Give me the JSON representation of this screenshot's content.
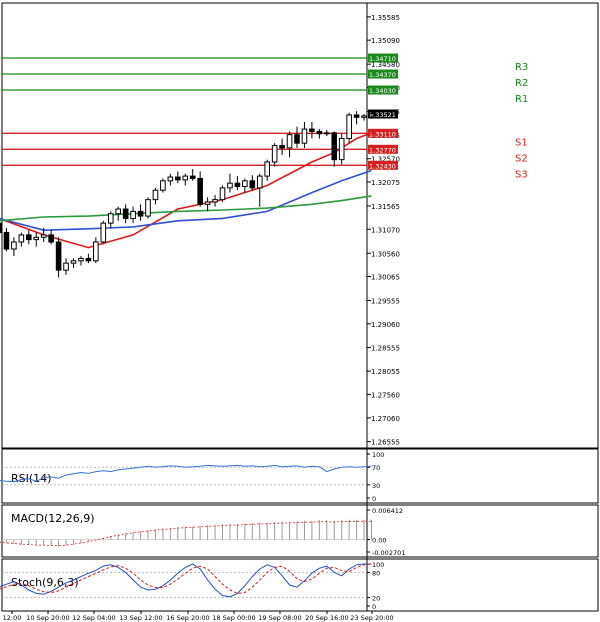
{
  "chart_data": {
    "type": "candlestick",
    "instrument_axis": {
      "ticks": [
        "1.35585",
        "1.35090",
        "1.34580",
        "1.34080",
        "1.33575",
        "1.33075",
        "1.32570",
        "1.32075",
        "1.31565",
        "1.31070",
        "1.30560",
        "1.30065",
        "1.29555",
        "1.29060",
        "1.28555",
        "1.28055",
        "1.27560",
        "1.27060",
        "1.26555"
      ],
      "ylim": [
        1.2642,
        1.3588
      ]
    },
    "x_tick_labels": [
      "12:00",
      "10 Sep 20:00",
      "12 Sep 04:00",
      "13 Sep 12:00",
      "16 Sep 20:00",
      "18 Sep 00:00",
      "19 Sep 08:00",
      "20 Sep 16:00",
      "23 Sep 20:00"
    ],
    "levels": [
      {
        "name": "R3",
        "value": 1.3471,
        "tag": "1.34710",
        "color": "#1a8a1a"
      },
      {
        "name": "R2",
        "value": 1.3437,
        "tag": "1.34370",
        "color": "#1a8a1a"
      },
      {
        "name": "R1",
        "value": 1.3403,
        "tag": "1.34030",
        "color": "#1a8a1a"
      },
      {
        "name": "S1",
        "value": 1.3311,
        "tag": "1.33110",
        "color": "#d42020"
      },
      {
        "name": "S2",
        "value": 1.3277,
        "tag": "1.32770",
        "color": "#d42020"
      },
      {
        "name": "S3",
        "value": 1.3243,
        "tag": "1.32430",
        "color": "#d42020"
      }
    ],
    "current_price": "1.33521",
    "candles": [
      [
        1.312,
        1.3135,
        1.309,
        1.31
      ],
      [
        1.31,
        1.311,
        1.306,
        1.3065
      ],
      [
        1.3065,
        1.309,
        1.305,
        1.308
      ],
      [
        1.308,
        1.31,
        1.307,
        1.3095
      ],
      [
        1.3095,
        1.3105,
        1.3075,
        1.3085
      ],
      [
        1.3085,
        1.31,
        1.307,
        1.309
      ],
      [
        1.309,
        1.311,
        1.308,
        1.3095
      ],
      [
        1.3095,
        1.3105,
        1.3075,
        1.308
      ],
      [
        1.308,
        1.309,
        1.3005,
        1.302
      ],
      [
        1.302,
        1.3045,
        1.301,
        1.3035
      ],
      [
        1.3035,
        1.3045,
        1.3025,
        1.304
      ],
      [
        1.304,
        1.305,
        1.303,
        1.3045
      ],
      [
        1.3045,
        1.3055,
        1.3035,
        1.304
      ],
      [
        1.304,
        1.309,
        1.3035,
        1.308
      ],
      [
        1.308,
        1.3125,
        1.3075,
        1.312
      ],
      [
        1.312,
        1.3145,
        1.311,
        1.314
      ],
      [
        1.314,
        1.3155,
        1.3125,
        1.315
      ],
      [
        1.315,
        1.316,
        1.312,
        1.313
      ],
      [
        1.313,
        1.3155,
        1.312,
        1.3145
      ],
      [
        1.3145,
        1.316,
        1.3125,
        1.3135
      ],
      [
        1.3135,
        1.3175,
        1.313,
        1.317
      ],
      [
        1.317,
        1.3195,
        1.316,
        1.319
      ],
      [
        1.319,
        1.3215,
        1.3185,
        1.321
      ],
      [
        1.321,
        1.3225,
        1.32,
        1.3218
      ],
      [
        1.3218,
        1.323,
        1.3205,
        1.3212
      ],
      [
        1.3212,
        1.3225,
        1.32,
        1.322
      ],
      [
        1.322,
        1.3235,
        1.321,
        1.3215
      ],
      [
        1.3215,
        1.323,
        1.3155,
        1.316
      ],
      [
        1.316,
        1.3175,
        1.3145,
        1.3165
      ],
      [
        1.3165,
        1.318,
        1.3155,
        1.317
      ],
      [
        1.317,
        1.32,
        1.3165,
        1.3195
      ],
      [
        1.3195,
        1.3225,
        1.3185,
        1.3205
      ],
      [
        1.3205,
        1.322,
        1.319,
        1.3198
      ],
      [
        1.3198,
        1.3215,
        1.3185,
        1.321
      ],
      [
        1.321,
        1.3222,
        1.319,
        1.3195
      ],
      [
        1.3195,
        1.3225,
        1.3155,
        1.322
      ],
      [
        1.322,
        1.3255,
        1.321,
        1.325
      ],
      [
        1.325,
        1.329,
        1.324,
        1.3285
      ],
      [
        1.3285,
        1.33,
        1.3265,
        1.328
      ],
      [
        1.328,
        1.3315,
        1.326,
        1.3308
      ],
      [
        1.3308,
        1.3325,
        1.328,
        1.329
      ],
      [
        1.329,
        1.3335,
        1.328,
        1.332
      ],
      [
        1.332,
        1.3335,
        1.33,
        1.3315
      ],
      [
        1.3315,
        1.332,
        1.33,
        1.331
      ],
      [
        1.331,
        1.3318,
        1.3305,
        1.3312
      ],
      [
        1.3312,
        1.3315,
        1.324,
        1.3255
      ],
      [
        1.3255,
        1.331,
        1.3245,
        1.33
      ],
      [
        1.33,
        1.3355,
        1.329,
        1.335
      ],
      [
        1.335,
        1.3358,
        1.333,
        1.3345
      ],
      [
        1.3345,
        1.3352,
        1.3338,
        1.3348
      ],
      [
        1.3348,
        1.3356,
        1.3342,
        1.3352
      ]
    ],
    "moving_averages": [
      {
        "color": "#e01818",
        "points": [
          [
            0,
            1.313
          ],
          [
            6,
            1.3095
          ],
          [
            12,
            1.3068
          ],
          [
            18,
            1.3095
          ],
          [
            24,
            1.315
          ],
          [
            30,
            1.317
          ],
          [
            36,
            1.32
          ],
          [
            42,
            1.325
          ],
          [
            45,
            1.327
          ],
          [
            48,
            1.33
          ],
          [
            50,
            1.3312
          ]
        ]
      },
      {
        "color": "#3050d0",
        "points": [
          [
            0,
            1.313
          ],
          [
            6,
            1.3105
          ],
          [
            12,
            1.3108
          ],
          [
            18,
            1.3112
          ],
          [
            24,
            1.3125
          ],
          [
            30,
            1.313
          ],
          [
            36,
            1.3145
          ],
          [
            42,
            1.3185
          ],
          [
            46,
            1.321
          ],
          [
            50,
            1.3232
          ]
        ]
      },
      {
        "color": "#2a9a3a",
        "points": [
          [
            0,
            1.3125
          ],
          [
            6,
            1.3133
          ],
          [
            12,
            1.3135
          ],
          [
            18,
            1.314
          ],
          [
            24,
            1.3145
          ],
          [
            30,
            1.3148
          ],
          [
            36,
            1.3152
          ],
          [
            42,
            1.316
          ],
          [
            46,
            1.3168
          ],
          [
            50,
            1.3178
          ]
        ]
      }
    ],
    "indicators": [
      {
        "label": "RSI(14)",
        "ticks": [
          "100",
          "70",
          "30",
          "0"
        ],
        "range": [
          0,
          100
        ],
        "color": "#3a70d8",
        "values": [
          40,
          38,
          37,
          42,
          44,
          38,
          46,
          48,
          45,
          52,
          55,
          58,
          56,
          60,
          62,
          60,
          64,
          66,
          68,
          70,
          72,
          70,
          71,
          73,
          72,
          70,
          71,
          72,
          74,
          73,
          72,
          73,
          74,
          72,
          73,
          71,
          72,
          74,
          71,
          72,
          73,
          70,
          72,
          71,
          60,
          66,
          70,
          71,
          70,
          71,
          72
        ]
      },
      {
        "label": "MACD(12,26,9)",
        "ticks": [
          "0.006412",
          "0.00",
          "-0.002701"
        ],
        "range": [
          -0.002701,
          0.006412
        ],
        "color": "#d42020",
        "values": [
          -0.0006,
          -0.0008,
          -0.0009,
          -0.0011,
          -0.0012,
          -0.0013,
          -0.0013,
          -0.0014,
          -0.0015,
          -0.0013,
          -0.0011,
          -0.0008,
          -0.0005,
          -0.0001,
          0.0003,
          0.0007,
          0.001,
          0.0013,
          0.0016,
          0.0018,
          0.002,
          0.0022,
          0.0024,
          0.0025,
          0.0027,
          0.0028,
          0.0029,
          0.003,
          0.0031,
          0.0032,
          0.0033,
          0.0034,
          0.0034,
          0.0035,
          0.0036,
          0.0037,
          0.0037,
          0.0038,
          0.0039,
          0.0039,
          0.004,
          0.0041,
          0.0041,
          0.0042,
          0.0042,
          0.0041,
          0.0042,
          0.0043,
          0.0043,
          0.0043,
          0.0043
        ]
      },
      {
        "label": "Stoch(9,6,3)",
        "ticks": [
          "100",
          "80",
          "20",
          "0"
        ],
        "range": [
          0,
          100
        ],
        "main_color": "#2050c0",
        "signal_color": "#d42020",
        "main": [
          45,
          52,
          58,
          50,
          38,
          30,
          28,
          35,
          45,
          55,
          62,
          70,
          78,
          85,
          95,
          98,
          92,
          80,
          62,
          45,
          38,
          40,
          48,
          62,
          78,
          92,
          100,
          88,
          62,
          40,
          25,
          22,
          30,
          48,
          70,
          88,
          98,
          92,
          72,
          50,
          45,
          60,
          78,
          90,
          95,
          80,
          72,
          88,
          98,
          100,
          100
        ],
        "signal": [
          40,
          46,
          52,
          54,
          48,
          40,
          34,
          32,
          36,
          45,
          54,
          62,
          70,
          78,
          86,
          93,
          96,
          90,
          78,
          62,
          50,
          44,
          44,
          52,
          64,
          78,
          90,
          95,
          88,
          70,
          52,
          38,
          30,
          32,
          45,
          62,
          80,
          92,
          95,
          82,
          65,
          58,
          64,
          78,
          90,
          92,
          84,
          82,
          92,
          98,
          100
        ]
      }
    ]
  }
}
